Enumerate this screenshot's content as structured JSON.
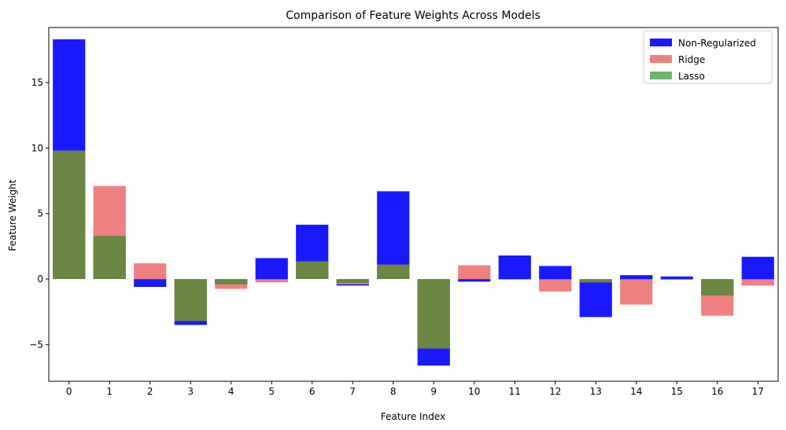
{
  "chart_data": {
    "type": "bar",
    "title": "Comparison of Feature Weights Across Models",
    "xlabel": "Feature Index",
    "ylabel": "Feature Weight",
    "categories": [
      "0",
      "1",
      "2",
      "3",
      "4",
      "5",
      "6",
      "7",
      "8",
      "9",
      "10",
      "11",
      "12",
      "13",
      "14",
      "15",
      "16",
      "17"
    ],
    "ylim": [
      -7.8,
      19.2
    ],
    "yticks": [
      -5,
      0,
      5,
      10,
      15
    ],
    "ytick_labels": [
      "−5",
      "0",
      "5",
      "10",
      "15"
    ],
    "grid": false,
    "legend_position": "top-right",
    "series": [
      {
        "name": "Non-Regularized",
        "color": "#0000ff",
        "opacity": 0.9,
        "values": [
          18.3,
          3.3,
          -0.6,
          -3.5,
          -0.4,
          1.6,
          4.15,
          -0.5,
          6.7,
          -6.6,
          -0.2,
          1.8,
          1.0,
          -2.9,
          0.3,
          0.2,
          -1.3,
          1.7
        ]
      },
      {
        "name": "Ridge",
        "color": "#f08080",
        "opacity": 1.0,
        "values": [
          9.8,
          7.1,
          1.2,
          -3.2,
          -0.75,
          -0.25,
          1.35,
          -0.4,
          1.1,
          -5.3,
          1.05,
          0.0,
          -0.95,
          -0.25,
          -1.95,
          -0.05,
          -2.8,
          -0.5
        ]
      },
      {
        "name": "Lasso",
        "color": "#228b22",
        "opacity": 0.65,
        "values": [
          9.8,
          3.3,
          0.0,
          -3.2,
          -0.4,
          0.0,
          1.35,
          -0.3,
          1.1,
          -5.3,
          0.0,
          0.0,
          0.0,
          -0.25,
          0.0,
          0.0,
          -1.25,
          0.0
        ]
      }
    ]
  }
}
